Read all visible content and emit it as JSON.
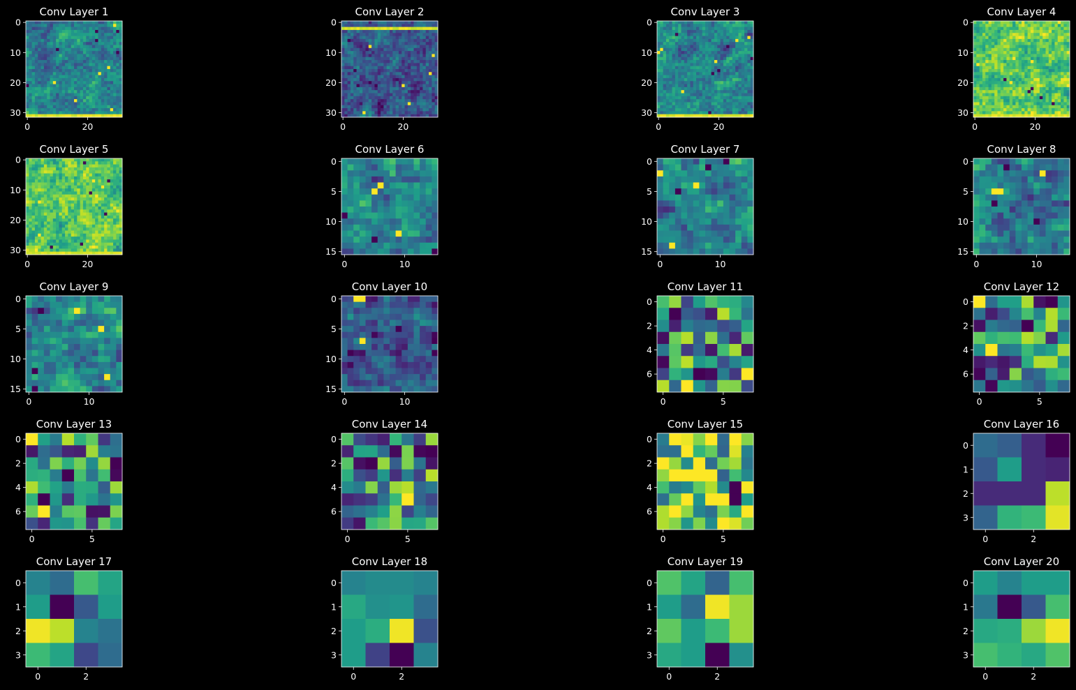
{
  "figure": {
    "background": "#000000",
    "colormap": "viridis",
    "colormap_stops": [
      "#440154",
      "#482878",
      "#3e4989",
      "#31688e",
      "#26828e",
      "#1f9e89",
      "#35b779",
      "#6ece58",
      "#b5de2b",
      "#fde725"
    ]
  },
  "chart_data": [
    {
      "type": "heatmap",
      "title": "Conv Layer 1",
      "size": 32,
      "xticks": [
        0,
        20
      ],
      "yticks": [
        0,
        10,
        20,
        30
      ],
      "seed": 101,
      "pattern": "texture"
    },
    {
      "type": "heatmap",
      "title": "Conv Layer 2",
      "size": 32,
      "xticks": [
        0,
        20
      ],
      "yticks": [
        0,
        10,
        20,
        30
      ],
      "seed": 202,
      "pattern": "dark"
    },
    {
      "type": "heatmap",
      "title": "Conv Layer 3",
      "size": 32,
      "xticks": [
        0,
        20
      ],
      "yticks": [
        0,
        10,
        20,
        30
      ],
      "seed": 303,
      "pattern": "texture"
    },
    {
      "type": "heatmap",
      "title": "Conv Layer 4",
      "size": 32,
      "xticks": [
        0,
        20
      ],
      "yticks": [
        0,
        10,
        20,
        30
      ],
      "seed": 404,
      "pattern": "bright"
    },
    {
      "type": "heatmap",
      "title": "Conv Layer 5",
      "size": 32,
      "xticks": [
        0,
        20
      ],
      "yticks": [
        0,
        10,
        20,
        30
      ],
      "seed": 505,
      "pattern": "bright"
    },
    {
      "type": "heatmap",
      "title": "Conv Layer 6",
      "size": 16,
      "xticks": [
        0,
        10
      ],
      "yticks": [
        0,
        5,
        10,
        15
      ],
      "seed": 606,
      "pattern": "texture"
    },
    {
      "type": "heatmap",
      "title": "Conv Layer 7",
      "size": 16,
      "xticks": [
        0,
        10
      ],
      "yticks": [
        0,
        5,
        10,
        15
      ],
      "seed": 707,
      "pattern": "texture"
    },
    {
      "type": "heatmap",
      "title": "Conv Layer 8",
      "size": 16,
      "xticks": [
        0,
        10
      ],
      "yticks": [
        0,
        5,
        10,
        15
      ],
      "seed": 808,
      "pattern": "texture"
    },
    {
      "type": "heatmap",
      "title": "Conv Layer 9",
      "size": 16,
      "xticks": [
        0,
        10
      ],
      "yticks": [
        0,
        5,
        10,
        15
      ],
      "seed": 909,
      "pattern": "texture"
    },
    {
      "type": "heatmap",
      "title": "Conv Layer 10",
      "size": 16,
      "xticks": [
        0,
        10
      ],
      "yticks": [
        0,
        5,
        10,
        15
      ],
      "seed": 1010,
      "pattern": "dark"
    },
    {
      "type": "heatmap",
      "title": "Conv Layer 11",
      "size": 8,
      "xticks": [
        0,
        5
      ],
      "yticks": [
        0,
        2,
        4,
        6
      ],
      "seed": 1111,
      "pattern": "texture"
    },
    {
      "type": "heatmap",
      "title": "Conv Layer 12",
      "size": 8,
      "xticks": [
        0,
        5
      ],
      "yticks": [
        0,
        2,
        4,
        6
      ],
      "seed": 1212,
      "pattern": "texture"
    },
    {
      "type": "heatmap",
      "title": "Conv Layer 13",
      "size": 8,
      "xticks": [
        0,
        5
      ],
      "yticks": [
        0,
        2,
        4,
        6
      ],
      "seed": 1313,
      "pattern": "texture"
    },
    {
      "type": "heatmap",
      "title": "Conv Layer 14",
      "size": 8,
      "xticks": [
        0,
        5
      ],
      "yticks": [
        0,
        2,
        4,
        6
      ],
      "seed": 1414,
      "pattern": "texture"
    },
    {
      "type": "heatmap",
      "title": "Conv Layer 15",
      "size": 8,
      "xticks": [
        0,
        5
      ],
      "yticks": [
        0,
        2,
        4,
        6
      ],
      "seed": 1515,
      "pattern": "bright"
    },
    {
      "type": "heatmap",
      "title": "Conv Layer 16",
      "size": 4,
      "xticks": [
        0,
        2
      ],
      "yticks": [
        0,
        1,
        2,
        3
      ],
      "values": [
        [
          0.35,
          0.3,
          0.12,
          0.0
        ],
        [
          0.28,
          0.55,
          0.12,
          0.1
        ],
        [
          0.12,
          0.12,
          0.12,
          0.9
        ],
        [
          0.32,
          0.65,
          0.68,
          0.96
        ]
      ]
    },
    {
      "type": "heatmap",
      "title": "Conv Layer 17",
      "size": 4,
      "xticks": [
        0,
        2
      ],
      "yticks": [
        0,
        1,
        2,
        3
      ],
      "values": [
        [
          0.45,
          0.35,
          0.7,
          0.58
        ],
        [
          0.55,
          0.0,
          0.28,
          0.55
        ],
        [
          0.98,
          0.9,
          0.45,
          0.38
        ],
        [
          0.68,
          0.58,
          0.22,
          0.35
        ]
      ]
    },
    {
      "type": "heatmap",
      "title": "Conv Layer 18",
      "size": 4,
      "xticks": [
        0,
        2
      ],
      "yticks": [
        0,
        1,
        2,
        3
      ],
      "values": [
        [
          0.45,
          0.48,
          0.48,
          0.45
        ],
        [
          0.6,
          0.5,
          0.52,
          0.35
        ],
        [
          0.55,
          0.62,
          0.98,
          0.25
        ],
        [
          0.55,
          0.2,
          0.0,
          0.45
        ]
      ]
    },
    {
      "type": "heatmap",
      "title": "Conv Layer 19",
      "size": 4,
      "xticks": [
        0,
        2
      ],
      "yticks": [
        0,
        1,
        2,
        3
      ],
      "values": [
        [
          0.72,
          0.58,
          0.32,
          0.7
        ],
        [
          0.55,
          0.35,
          0.98,
          0.85
        ],
        [
          0.75,
          0.55,
          0.68,
          0.85
        ],
        [
          0.6,
          0.55,
          0.0,
          0.5
        ]
      ]
    },
    {
      "type": "heatmap",
      "title": "Conv Layer 20",
      "size": 4,
      "xticks": [
        0,
        2
      ],
      "yticks": [
        0,
        1,
        2,
        3
      ],
      "values": [
        [
          0.55,
          0.45,
          0.55,
          0.55
        ],
        [
          0.4,
          0.0,
          0.28,
          0.7
        ],
        [
          0.6,
          0.62,
          0.85,
          0.98
        ],
        [
          0.7,
          0.65,
          0.6,
          0.72
        ]
      ]
    }
  ]
}
